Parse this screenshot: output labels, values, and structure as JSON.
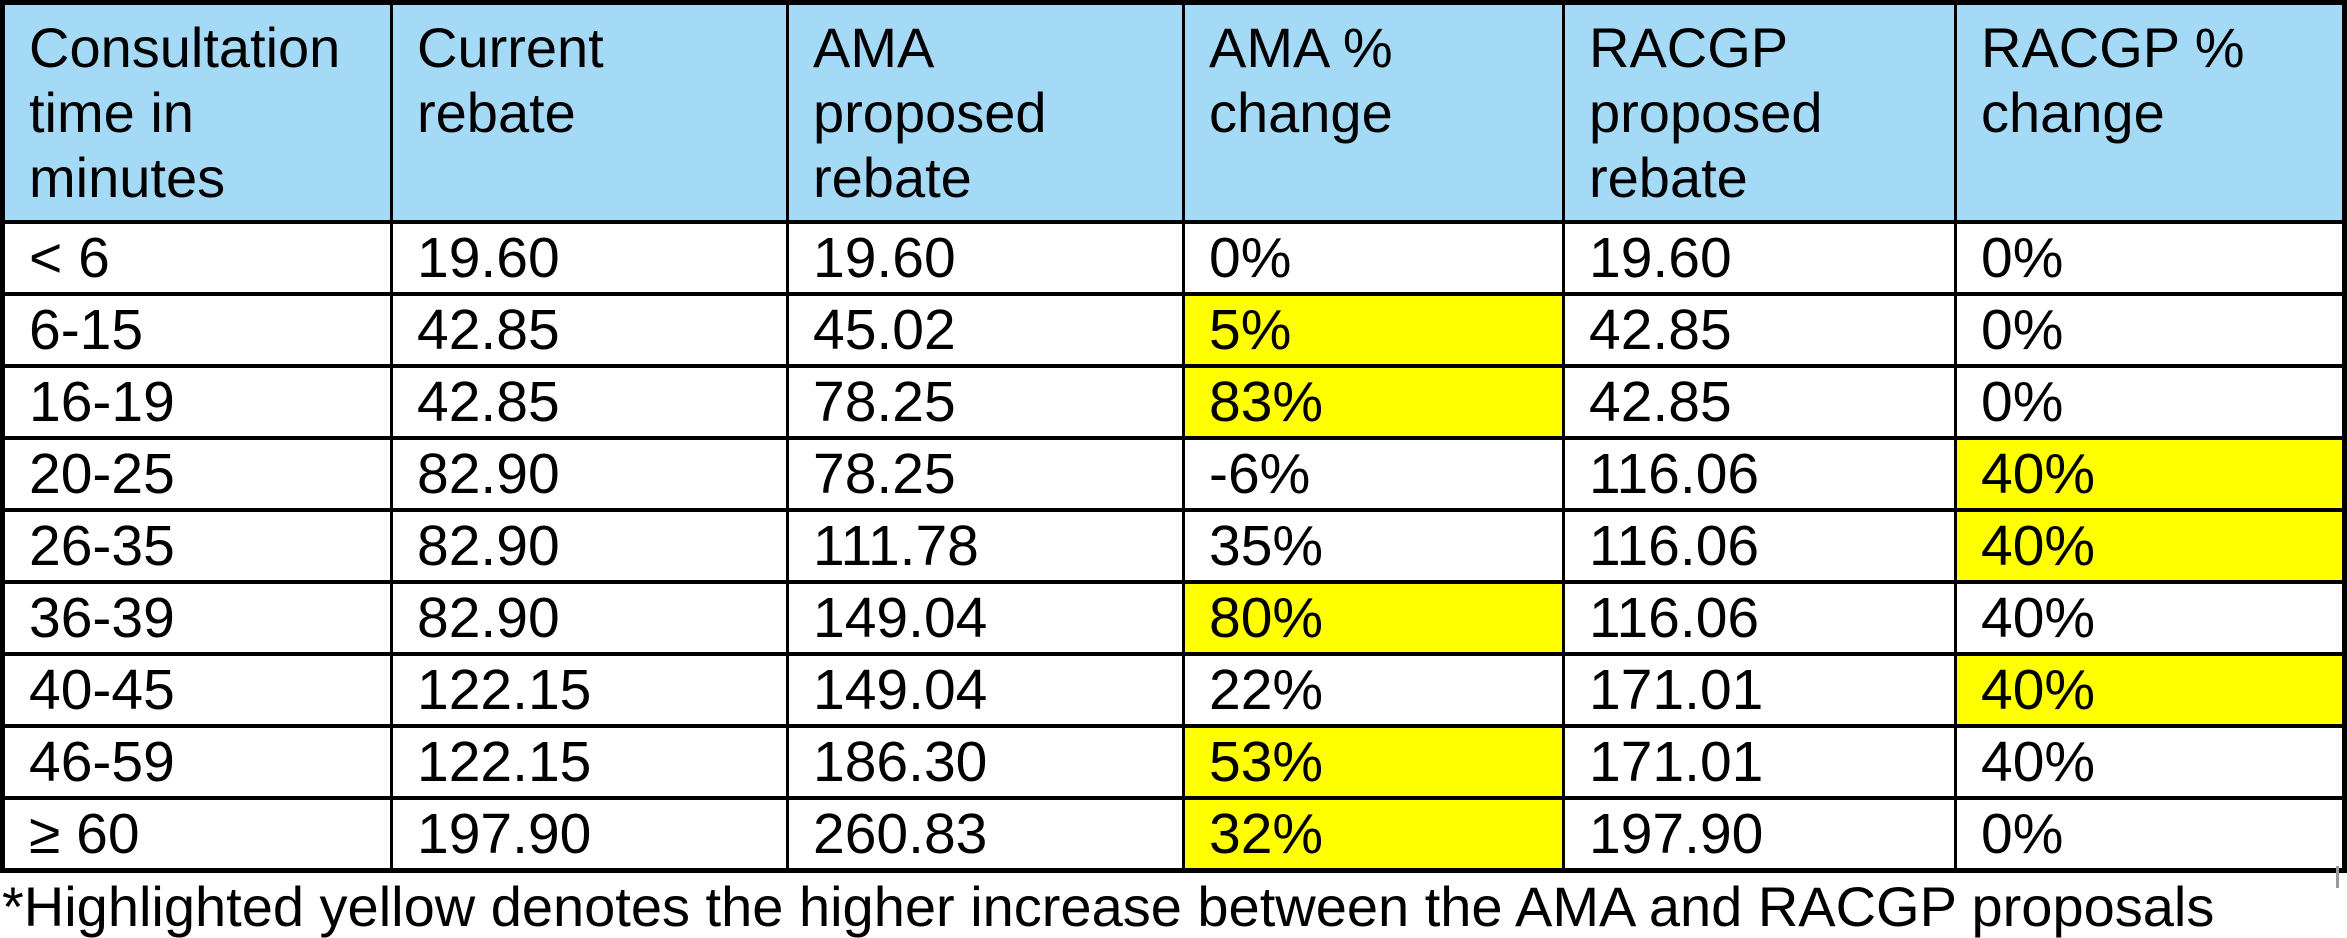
{
  "table": {
    "headers": [
      "Consultation\ntime in\nminutes",
      "Current\nrebate",
      "AMA\nproposed\nrebate",
      "AMA %\nchange",
      "RACGP\nproposed\nrebate",
      "RACGP %\nchange"
    ],
    "rows": [
      {
        "time": "< 6",
        "current": "19.60",
        "ama_rebate": "19.60",
        "ama_pct": "0%",
        "ama_highlight": false,
        "racgp_rebate": "19.60",
        "racgp_pct": "0%",
        "racgp_highlight": false
      },
      {
        "time": "6-15",
        "current": "42.85",
        "ama_rebate": "45.02",
        "ama_pct": "5%",
        "ama_highlight": true,
        "racgp_rebate": "42.85",
        "racgp_pct": "0%",
        "racgp_highlight": false
      },
      {
        "time": "16-19",
        "current": "42.85",
        "ama_rebate": "78.25",
        "ama_pct": "83%",
        "ama_highlight": true,
        "racgp_rebate": "42.85",
        "racgp_pct": "0%",
        "racgp_highlight": false
      },
      {
        "time": "20-25",
        "current": "82.90",
        "ama_rebate": "78.25",
        "ama_pct": "-6%",
        "ama_highlight": false,
        "racgp_rebate": "116.06",
        "racgp_pct": "40%",
        "racgp_highlight": true
      },
      {
        "time": "26-35",
        "current": "82.90",
        "ama_rebate": "111.78",
        "ama_pct": "35%",
        "ama_highlight": false,
        "racgp_rebate": "116.06",
        "racgp_pct": "40%",
        "racgp_highlight": true
      },
      {
        "time": "36-39",
        "current": "82.90",
        "ama_rebate": "149.04",
        "ama_pct": "80%",
        "ama_highlight": true,
        "racgp_rebate": "116.06",
        "racgp_pct": "40%",
        "racgp_highlight": false
      },
      {
        "time": "40-45",
        "current": "122.15",
        "ama_rebate": "149.04",
        "ama_pct": "22%",
        "ama_highlight": false,
        "racgp_rebate": "171.01",
        "racgp_pct": "40%",
        "racgp_highlight": true
      },
      {
        "time": "46-59",
        "current": "122.15",
        "ama_rebate": "186.30",
        "ama_pct": "53%",
        "ama_highlight": true,
        "racgp_rebate": "171.01",
        "racgp_pct": "40%",
        "racgp_highlight": false
      },
      {
        "time": "≥ 60",
        "current": "197.90",
        "ama_rebate": "260.83",
        "ama_pct": "32%",
        "ama_highlight": true,
        "racgp_rebate": "197.90",
        "racgp_pct": "0%",
        "racgp_highlight": false
      }
    ]
  },
  "footnote": "*Highlighted yellow denotes the higher increase between the AMA and RACGP proposals",
  "colors": {
    "header_bg": "#A5DAF7",
    "highlight_bg": "#FFFF00",
    "border": "#000000",
    "text": "#000000"
  }
}
